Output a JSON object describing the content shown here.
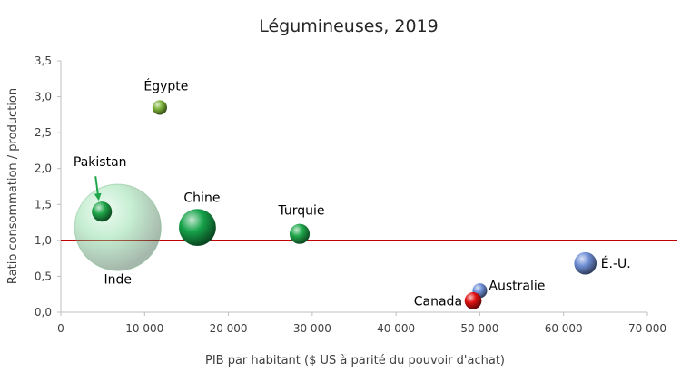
{
  "chart_data": {
    "type": "scatter",
    "title": "Légumineuses, 2019",
    "xlabel": "PIB par habitant ($ US à parité du pouvoir d'achat)",
    "ylabel": "Ratio consommation / production",
    "xlim": [
      0,
      70000
    ],
    "ylim": [
      0,
      3.5
    ],
    "xticks": [
      0,
      10000,
      20000,
      30000,
      40000,
      50000,
      60000,
      70000
    ],
    "xtick_labels": [
      "0",
      "10 000",
      "20 000",
      "30 000",
      "40 000",
      "50 000",
      "60 000",
      "70 000"
    ],
    "yticks": [
      0,
      0.5,
      1.0,
      1.5,
      2.0,
      2.5,
      3.0,
      3.5
    ],
    "ytick_labels": [
      "0,0",
      "0,5",
      "1,0",
      "1,5",
      "2,0",
      "2,5",
      "3,0",
      "3,5"
    ],
    "reference_line": {
      "y": 1.0,
      "color": "#c00000"
    },
    "points": [
      {
        "label": "Inde",
        "x": 6800,
        "y": 1.18,
        "size": 5.6,
        "color": "#7fd99a",
        "translucent": true
      },
      {
        "label": "Pakistan",
        "x": 4900,
        "y": 1.4,
        "size": 1.3,
        "color": "#1fa64a",
        "arrow": true
      },
      {
        "label": "Égypte",
        "x": 11800,
        "y": 2.85,
        "size": 0.95,
        "color": "#7db33a"
      },
      {
        "label": "Chine",
        "x": 16300,
        "y": 1.18,
        "size": 2.4,
        "color": "#16a34a"
      },
      {
        "label": "Turquie",
        "x": 28500,
        "y": 1.09,
        "size": 1.3,
        "color": "#1fa64a"
      },
      {
        "label": "É.-U.",
        "x": 62600,
        "y": 0.68,
        "size": 1.45,
        "color": "#6f8fd6"
      },
      {
        "label": "Australie",
        "x": 50000,
        "y": 0.3,
        "size": 0.95,
        "color": "#6f8fd6"
      },
      {
        "label": "Canada",
        "x": 49200,
        "y": 0.16,
        "size": 1.1,
        "color": "#e01010"
      }
    ]
  }
}
